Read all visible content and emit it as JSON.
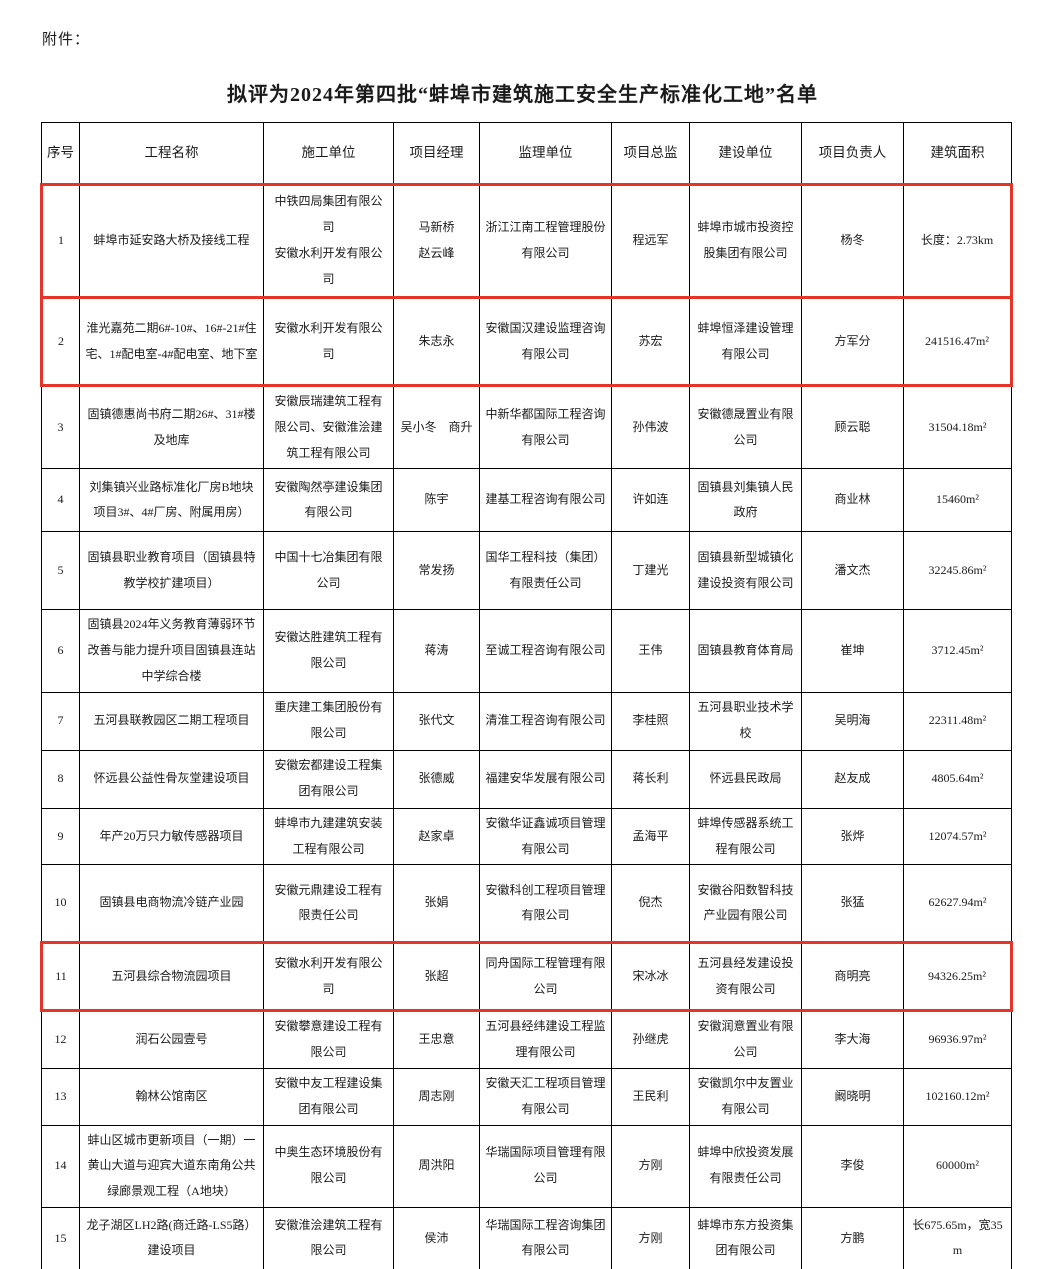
{
  "page": {
    "attachment_label": "附件：",
    "title": "拟评为2024年第四批“蚌埠市建筑施工安全生产标准化工地”名单"
  },
  "table": {
    "highlight_color": "#e53528",
    "columns": [
      "序号",
      "工程名称",
      "施工单位",
      "项目经理",
      "监理单位",
      "项目总监",
      "建设单位",
      "项目负责人",
      "建筑面积"
    ],
    "rows": [
      {
        "no": "1",
        "project": "蚌埠市延安路大桥及接线工程",
        "contractor": "中铁四局集团有限公司\n安徽水利开发有限公司",
        "manager": "马新桥\n赵云峰",
        "supervisor": "浙江江南工程管理股份有限公司",
        "director": "程远军",
        "owner": "蚌埠市城市投资控股集团有限公司",
        "leader": "杨冬",
        "area": "长度：2.73km",
        "highlighted": true
      },
      {
        "no": "2",
        "project": "淮光嘉苑二期6#-10#、16#-21#住宅、1#配电室-4#配电室、地下室",
        "contractor": "安徽水利开发有限公司",
        "manager": "朱志永",
        "supervisor": "安徽国汉建设监理咨询有限公司",
        "director": "苏宏",
        "owner": "蚌埠恒泽建设管理有限公司",
        "leader": "方军分",
        "area": "241516.47m²",
        "highlighted": true
      },
      {
        "no": "3",
        "project": "固镇德惠尚书府二期26#、31#楼及地库",
        "contractor": "安徽辰瑞建筑工程有限公司、安徽淮浍建筑工程有限公司",
        "manager": "吴小冬　商升",
        "supervisor": "中新华都国际工程咨询有限公司",
        "director": "孙伟波",
        "owner": "安徽德晟置业有限公司",
        "leader": "顾云聪",
        "area": "31504.18m²",
        "highlighted": false
      },
      {
        "no": "4",
        "project": "刘集镇兴业路标准化厂房B地块项目3#、4#厂房、附属用房）",
        "contractor": "安徽陶然亭建设集团有限公司",
        "manager": "陈宇",
        "supervisor": "建基工程咨询有限公司",
        "director": "许如连",
        "owner": "固镇县刘集镇人民政府",
        "leader": "商业林",
        "area": "15460m²",
        "highlighted": false
      },
      {
        "no": "5",
        "project": "固镇县职业教育项目（固镇县特教学校扩建项目）",
        "contractor": "中国十七冶集团有限公司",
        "manager": "常发扬",
        "supervisor": "国华工程科技（集团）有限责任公司",
        "director": "丁建光",
        "owner": "固镇县新型城镇化建设投资有限公司",
        "leader": "潘文杰",
        "area": "32245.86m²",
        "highlighted": false
      },
      {
        "no": "6",
        "project": "固镇县2024年义务教育薄弱环节改善与能力提升项目固镇县连站中学综合楼",
        "contractor": "安徽达胜建筑工程有限公司",
        "manager": "蒋涛",
        "supervisor": "至诚工程咨询有限公司",
        "director": "王伟",
        "owner": "固镇县教育体育局",
        "leader": "崔坤",
        "area": "3712.45m²",
        "highlighted": false
      },
      {
        "no": "7",
        "project": "五河县联教园区二期工程项目",
        "contractor": "重庆建工集团股份有限公司",
        "manager": "张代文",
        "supervisor": "清淮工程咨询有限公司",
        "director": "李桂照",
        "owner": "五河县职业技术学校",
        "leader": "吴明海",
        "area": "22311.48m²",
        "highlighted": false
      },
      {
        "no": "8",
        "project": "怀远县公益性骨灰堂建设项目",
        "contractor": "安徽宏都建设工程集团有限公司",
        "manager": "张德威",
        "supervisor": "福建安华发展有限公司",
        "director": "蒋长利",
        "owner": "怀远县民政局",
        "leader": "赵友成",
        "area": "4805.64m²",
        "highlighted": false
      },
      {
        "no": "9",
        "project": "年产20万只力敏传感器项目",
        "contractor": "蚌埠市九建建筑安装工程有限公司",
        "manager": "赵家卓",
        "supervisor": "安徽华证鑫诚项目管理有限公司",
        "director": "孟海平",
        "owner": "蚌埠传感器系统工程有限公司",
        "leader": "张烨",
        "area": "12074.57m²",
        "highlighted": false
      },
      {
        "no": "10",
        "project": "固镇县电商物流冷链产业园",
        "contractor": "安徽元鼎建设工程有限责任公司",
        "manager": "张娟",
        "supervisor": "安徽科创工程项目管理有限公司",
        "director": "倪杰",
        "owner": "安徽谷阳数智科技产业园有限公司",
        "leader": "张猛",
        "area": "62627.94m²",
        "highlighted": false
      },
      {
        "no": "11",
        "project": "五河县综合物流园项目",
        "contractor": "安徽水利开发有限公司",
        "manager": "张超",
        "supervisor": "同舟国际工程管理有限公司",
        "director": "宋冰冰",
        "owner": "五河县经发建设投资有限公司",
        "leader": "商明亮",
        "area": "94326.25m²",
        "highlighted": true
      },
      {
        "no": "12",
        "project": "润石公园壹号",
        "contractor": "安徽攀意建设工程有限公司",
        "manager": "王忠意",
        "supervisor": "五河县经纬建设工程监理有限公司",
        "director": "孙继虎",
        "owner": "安徽润意置业有限公司",
        "leader": "李大海",
        "area": "96936.97m²",
        "highlighted": false
      },
      {
        "no": "13",
        "project": "翰林公馆南区",
        "contractor": "安徽中友工程建设集团有限公司",
        "manager": "周志刚",
        "supervisor": "安徽天汇工程项目管理有限公司",
        "director": "王民利",
        "owner": "安徽凯尔中友置业有限公司",
        "leader": "阚晓明",
        "area": "102160.12m²",
        "highlighted": false
      },
      {
        "no": "14",
        "project": "蚌山区城市更新项目（一期）一黄山大道与迎宾大道东南角公共绿廊景观工程（A地块）",
        "contractor": "中奥生态环境股份有限公司",
        "manager": "周洪阳",
        "supervisor": "华瑞国际项目管理有限公司",
        "director": "方刚",
        "owner": "蚌埠中欣投资发展有限责任公司",
        "leader": "李俊",
        "area": "60000m²",
        "highlighted": false
      },
      {
        "no": "15",
        "project": "龙子湖区LH2路(商迁路-LS5路）建设项目",
        "contractor": "安徽淮浍建筑工程有限公司",
        "manager": "侯沛",
        "supervisor": "华瑞国际工程咨询集团有限公司",
        "director": "方刚",
        "owner": "蚌埠市东方投资集团有限公司",
        "leader": "方鹏",
        "area": "长675.65m，宽35m",
        "highlighted": false
      }
    ]
  }
}
